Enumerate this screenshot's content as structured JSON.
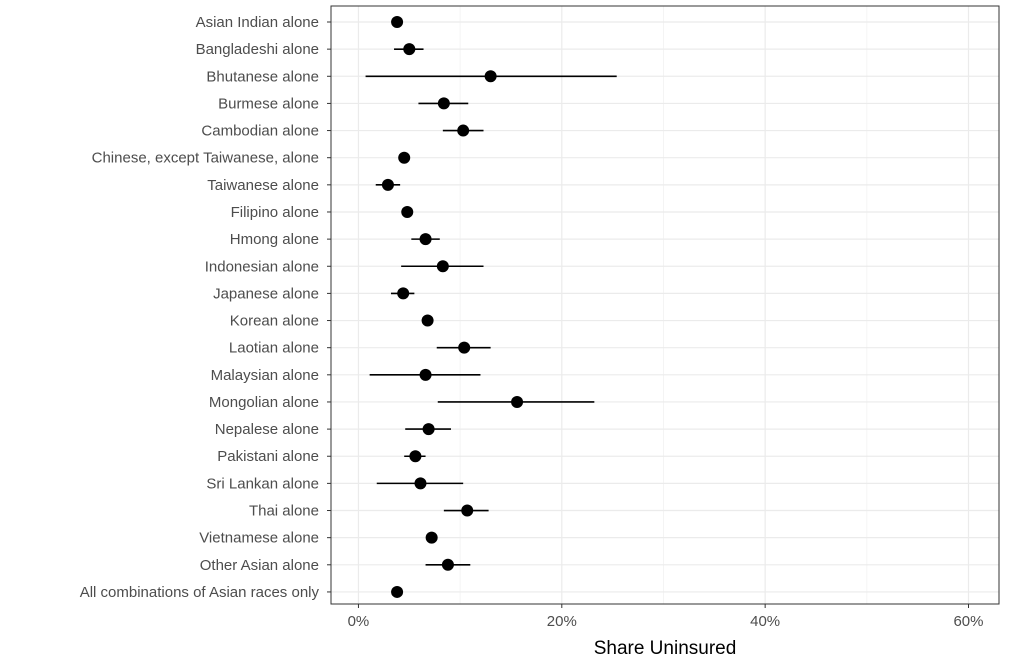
{
  "chart_data": {
    "type": "scatter",
    "xlabel": "Share Uninsured",
    "ylabel": "",
    "xlim": [
      -0.027,
      0.63
    ],
    "x_ticks": [
      {
        "value": 0.0,
        "label": "0%"
      },
      {
        "value": 0.2,
        "label": "20%"
      },
      {
        "value": 0.4,
        "label": "40%"
      },
      {
        "value": 0.6,
        "label": "60%"
      }
    ],
    "grid": true,
    "legend": "none",
    "colors": {
      "point": "#000000",
      "errorbar": "#000000",
      "grid_major": "#ebebeb",
      "grid_minor": "#f4f4f4",
      "panel_border": "#333333",
      "tick_text": "#4d4d4d"
    },
    "categories": [
      "Asian Indian alone",
      "Bangladeshi alone",
      "Bhutanese alone",
      "Burmese alone",
      "Cambodian alone",
      "Chinese, except Taiwanese, alone",
      "Taiwanese alone",
      "Filipino alone",
      "Hmong alone",
      "Indonesian alone",
      "Japanese alone",
      "Korean alone",
      "Laotian alone",
      "Malaysian alone",
      "Mongolian alone",
      "Nepalese alone",
      "Pakistani alone",
      "Sri Lankan alone",
      "Thai alone",
      "Vietnamese alone",
      "Other Asian alone",
      "All combinations of Asian races only"
    ],
    "series": [
      {
        "estimate": [
          0.038,
          0.05,
          0.13,
          0.084,
          0.103,
          0.045,
          0.029,
          0.048,
          0.066,
          0.083,
          0.044,
          0.068,
          0.104,
          0.066,
          0.156,
          0.069,
          0.056,
          0.061,
          0.107,
          0.072,
          0.088,
          0.038
        ],
        "lower": [
          0.035,
          0.035,
          0.007,
          0.059,
          0.083,
          0.041,
          0.017,
          0.045,
          0.052,
          0.042,
          0.032,
          0.063,
          0.077,
          0.011,
          0.078,
          0.046,
          0.045,
          0.018,
          0.084,
          0.067,
          0.066,
          0.035
        ],
        "upper": [
          0.041,
          0.064,
          0.254,
          0.108,
          0.123,
          0.049,
          0.041,
          0.051,
          0.08,
          0.123,
          0.055,
          0.073,
          0.13,
          0.12,
          0.232,
          0.091,
          0.066,
          0.103,
          0.128,
          0.077,
          0.11,
          0.041
        ]
      }
    ]
  }
}
